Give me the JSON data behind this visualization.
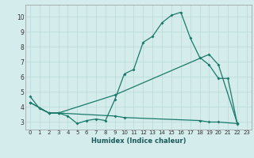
{
  "xlabel": "Humidex (Indice chaleur)",
  "bg_color": "#d4ecec",
  "grid_color": "#b8d8d8",
  "line_color": "#1a7a6a",
  "xlim": [
    -0.5,
    23.5
  ],
  "ylim": [
    2.5,
    10.8
  ],
  "yticks": [
    3,
    4,
    5,
    6,
    7,
    8,
    9,
    10
  ],
  "xticks": [
    0,
    1,
    2,
    3,
    4,
    5,
    6,
    7,
    8,
    9,
    10,
    11,
    12,
    13,
    14,
    15,
    16,
    17,
    18,
    19,
    20,
    21,
    22,
    23
  ],
  "curve1_x": [
    0,
    1,
    2,
    3,
    4,
    5,
    6,
    7,
    8,
    9,
    10,
    11,
    12,
    13,
    14,
    15,
    16,
    17,
    18,
    19,
    20,
    21,
    22
  ],
  "curve1_y": [
    4.7,
    3.9,
    3.6,
    3.6,
    3.4,
    2.9,
    3.1,
    3.2,
    3.1,
    4.5,
    6.2,
    6.5,
    8.3,
    8.7,
    9.6,
    10.1,
    10.3,
    8.6,
    7.3,
    6.8,
    5.9,
    5.9,
    2.85
  ],
  "curve2_x": [
    0,
    2,
    3,
    9,
    19,
    20,
    22
  ],
  "curve2_y": [
    4.3,
    3.6,
    3.6,
    4.8,
    7.5,
    6.8,
    2.9
  ],
  "curve3_x": [
    0,
    2,
    3,
    9,
    10,
    18,
    19,
    20,
    22
  ],
  "curve3_y": [
    4.3,
    3.6,
    3.6,
    3.4,
    3.3,
    3.1,
    3.0,
    3.0,
    2.9
  ]
}
